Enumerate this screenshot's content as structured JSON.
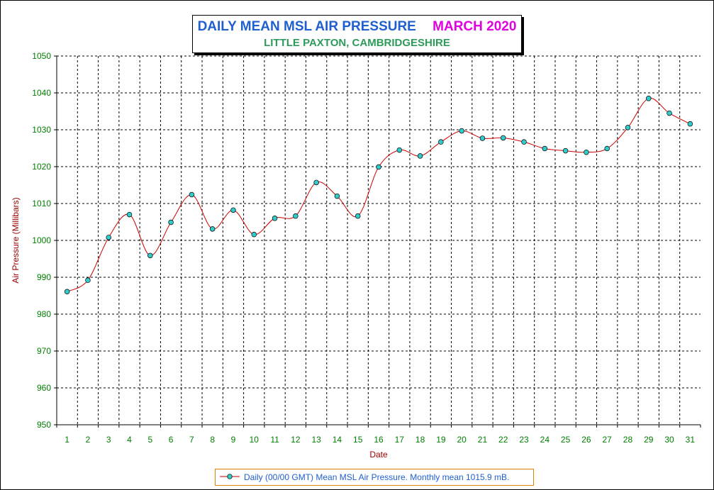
{
  "title": {
    "main": "DAILY MEAN MSL AIR PRESSURE",
    "month": "MARCH 2020",
    "subtitle": "LITTLE PAXTON, CAMBRIDGESHIRE"
  },
  "legend": {
    "label": "Daily (00/00 GMT) Mean MSL Air Pressure. Monthly mean 1015.9 mB."
  },
  "colors": {
    "line": "#cc0000",
    "marker": "#33cccc",
    "axis_text": "#008000",
    "axis_title": "#990000",
    "title": "#1f5fcf",
    "month": "#e000e0",
    "subtitle": "#2e9a5a",
    "legend_border": "#e08000"
  },
  "chart_data": {
    "type": "line",
    "xlabel": "Date",
    "ylabel": "Air Pressure (Millibars)",
    "ylim": [
      950,
      1050
    ],
    "yticks": [
      "950",
      "960",
      "970",
      "980",
      "990",
      "1000",
      "1010",
      "1020",
      "1030",
      "1040",
      "1050"
    ],
    "grid": true,
    "legend_position": "bottom-center",
    "x": [
      1,
      2,
      3,
      4,
      5,
      6,
      7,
      8,
      9,
      10,
      11,
      12,
      13,
      14,
      15,
      16,
      17,
      18,
      19,
      20,
      21,
      22,
      23,
      24,
      25,
      26,
      27,
      28,
      29,
      30,
      31
    ],
    "series": [
      {
        "name": "Daily (00/00 GMT) Mean MSL Air Pressure. Monthly mean 1015.9 mB.",
        "values": [
          986.1,
          989.2,
          1000.8,
          1007.0,
          995.9,
          1004.9,
          1012.4,
          1003.1,
          1008.2,
          1001.6,
          1006.0,
          1006.6,
          1015.7,
          1012.0,
          1006.6,
          1019.9,
          1024.5,
          1022.9,
          1026.7,
          1029.7,
          1027.7,
          1027.8,
          1026.7,
          1024.9,
          1024.3,
          1023.9,
          1024.9,
          1030.6,
          1038.5,
          1034.5,
          1031.6
        ]
      }
    ]
  }
}
